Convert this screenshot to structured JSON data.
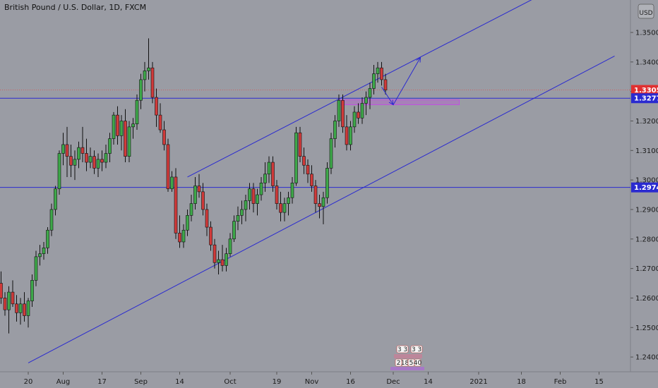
{
  "chart_data": {
    "type": "candlestick",
    "title": "British Pound / U.S. Dollar, 1D, FXCM",
    "currency_button": "USD",
    "ylim": [
      1.235,
      1.361
    ],
    "y_ticks": [
      "1.24000",
      "1.25000",
      "1.26000",
      "1.27000",
      "1.28000",
      "1.29000",
      "1.30000",
      "1.31000",
      "1.32000",
      "1.33000",
      "1.34000",
      "1.35000"
    ],
    "x_ticks": [
      {
        "label": "20",
        "bar": 7
      },
      {
        "label": "Aug",
        "bar": 16
      },
      {
        "label": "17",
        "bar": 26
      },
      {
        "label": "Sep",
        "bar": 36
      },
      {
        "label": "14",
        "bar": 46
      },
      {
        "label": "Oct",
        "bar": 59
      },
      {
        "label": "19",
        "bar": 71
      },
      {
        "label": "Nov",
        "bar": 80
      },
      {
        "label": "16",
        "bar": 90
      },
      {
        "label": "Dec",
        "bar": 101
      },
      {
        "label": "14",
        "bar": 110
      },
      {
        "label": "2021",
        "bar": 123
      },
      {
        "label": "18",
        "bar": 134
      },
      {
        "label": "Feb",
        "bar": 144
      },
      {
        "label": "15",
        "bar": 154
      }
    ],
    "price_tags": [
      {
        "label": "1.33052",
        "value": 1.33052,
        "color": "#e03030"
      },
      {
        "label": "1.32771",
        "value": 1.32771,
        "color": "#2a2ad0"
      },
      {
        "label": "1.29748",
        "value": 1.29748,
        "color": "#2a2ad0"
      }
    ],
    "horizontal_lines": [
      {
        "value": 1.32771,
        "color": "#2a2ad0"
      },
      {
        "value": 1.29748,
        "color": "#2a2ad0"
      },
      {
        "value": 1.33052,
        "color": "#d06060",
        "dashed": true
      }
    ],
    "trend_lines": [
      {
        "from": [
          7,
          1.238
        ],
        "to": [
          158,
          1.342
        ],
        "color": "#2a2ad0"
      },
      {
        "from": [
          48,
          1.301
        ],
        "to": [
          138,
          1.362
        ],
        "color": "#2a2ad0"
      }
    ],
    "zone": {
      "from_bar": 87,
      "to_bar": 118,
      "top": 1.3272,
      "bottom": 1.3255,
      "color": "#c050e0"
    },
    "projection_arrows": [
      {
        "from": [
          98,
          1.3315
        ],
        "to": [
          101,
          1.3255
        ]
      },
      {
        "from": [
          101,
          1.3255
        ],
        "to": [
          108,
          1.3415
        ]
      }
    ],
    "toolbar_buttons": [
      "3",
      "3",
      "3",
      "3",
      "2",
      "18",
      "5",
      "40"
    ],
    "candles": [
      [
        1.265,
        1.269,
        1.258,
        1.26
      ],
      [
        1.26,
        1.262,
        1.254,
        1.256
      ],
      [
        1.256,
        1.264,
        1.248,
        1.262
      ],
      [
        1.262,
        1.266,
        1.257,
        1.258
      ],
      [
        1.258,
        1.261,
        1.252,
        1.255
      ],
      [
        1.255,
        1.26,
        1.251,
        1.258
      ],
      [
        1.258,
        1.262,
        1.252,
        1.254
      ],
      [
        1.254,
        1.26,
        1.25,
        1.259
      ],
      [
        1.259,
        1.268,
        1.257,
        1.266
      ],
      [
        1.266,
        1.276,
        1.264,
        1.274
      ],
      [
        1.274,
        1.278,
        1.271,
        1.275
      ],
      [
        1.275,
        1.279,
        1.273,
        1.277
      ],
      [
        1.277,
        1.284,
        1.275,
        1.283
      ],
      [
        1.283,
        1.292,
        1.281,
        1.29
      ],
      [
        1.29,
        1.298,
        1.288,
        1.297
      ],
      [
        1.297,
        1.31,
        1.295,
        1.309
      ],
      [
        1.309,
        1.316,
        1.305,
        1.312
      ],
      [
        1.312,
        1.318,
        1.301,
        1.308
      ],
      [
        1.308,
        1.312,
        1.301,
        1.305
      ],
      [
        1.305,
        1.31,
        1.3,
        1.307
      ],
      [
        1.307,
        1.313,
        1.304,
        1.311
      ],
      [
        1.311,
        1.318,
        1.306,
        1.309
      ],
      [
        1.309,
        1.314,
        1.303,
        1.306
      ],
      [
        1.306,
        1.311,
        1.304,
        1.308
      ],
      [
        1.308,
        1.31,
        1.302,
        1.304
      ],
      [
        1.304,
        1.309,
        1.301,
        1.307
      ],
      [
        1.307,
        1.31,
        1.303,
        1.306
      ],
      [
        1.306,
        1.312,
        1.304,
        1.309
      ],
      [
        1.309,
        1.316,
        1.306,
        1.314
      ],
      [
        1.314,
        1.323,
        1.312,
        1.322
      ],
      [
        1.322,
        1.325,
        1.312,
        1.315
      ],
      [
        1.315,
        1.322,
        1.31,
        1.32
      ],
      [
        1.32,
        1.324,
        1.306,
        1.308
      ],
      [
        1.308,
        1.32,
        1.306,
        1.318
      ],
      [
        1.318,
        1.321,
        1.314,
        1.319
      ],
      [
        1.319,
        1.329,
        1.317,
        1.327
      ],
      [
        1.327,
        1.336,
        1.324,
        1.334
      ],
      [
        1.334,
        1.34,
        1.33,
        1.337
      ],
      [
        1.337,
        1.348,
        1.334,
        1.338
      ],
      [
        1.338,
        1.34,
        1.326,
        1.328
      ],
      [
        1.328,
        1.331,
        1.318,
        1.322
      ],
      [
        1.322,
        1.326,
        1.316,
        1.317
      ],
      [
        1.317,
        1.32,
        1.31,
        1.312
      ],
      [
        1.312,
        1.314,
        1.296,
        1.297
      ],
      [
        1.297,
        1.303,
        1.296,
        1.301
      ],
      [
        1.301,
        1.304,
        1.28,
        1.282
      ],
      [
        1.282,
        1.288,
        1.277,
        1.279
      ],
      [
        1.279,
        1.285,
        1.277,
        1.283
      ],
      [
        1.283,
        1.29,
        1.281,
        1.288
      ],
      [
        1.288,
        1.295,
        1.286,
        1.292
      ],
      [
        1.292,
        1.301,
        1.29,
        1.298
      ],
      [
        1.298,
        1.302,
        1.294,
        1.296
      ],
      [
        1.296,
        1.299,
        1.288,
        1.29
      ],
      [
        1.29,
        1.292,
        1.281,
        1.284
      ],
      [
        1.284,
        1.286,
        1.276,
        1.278
      ],
      [
        1.278,
        1.28,
        1.27,
        1.272
      ],
      [
        1.272,
        1.276,
        1.268,
        1.273
      ],
      [
        1.273,
        1.278,
        1.269,
        1.271
      ],
      [
        1.271,
        1.277,
        1.269,
        1.275
      ],
      [
        1.275,
        1.282,
        1.274,
        1.28
      ],
      [
        1.28,
        1.288,
        1.279,
        1.286
      ],
      [
        1.286,
        1.291,
        1.283,
        1.288
      ],
      [
        1.288,
        1.293,
        1.285,
        1.29
      ],
      [
        1.29,
        1.295,
        1.286,
        1.293
      ],
      [
        1.293,
        1.299,
        1.29,
        1.297
      ],
      [
        1.297,
        1.299,
        1.289,
        1.292
      ],
      [
        1.292,
        1.297,
        1.288,
        1.295
      ],
      [
        1.295,
        1.301,
        1.293,
        1.299
      ],
      [
        1.299,
        1.306,
        1.296,
        1.302
      ],
      [
        1.302,
        1.308,
        1.299,
        1.306
      ],
      [
        1.306,
        1.308,
        1.296,
        1.298
      ],
      [
        1.298,
        1.3,
        1.29,
        1.292
      ],
      [
        1.292,
        1.296,
        1.286,
        1.289
      ],
      [
        1.289,
        1.294,
        1.286,
        1.292
      ],
      [
        1.292,
        1.296,
        1.288,
        1.294
      ],
      [
        1.294,
        1.301,
        1.292,
        1.299
      ],
      [
        1.299,
        1.318,
        1.298,
        1.316
      ],
      [
        1.316,
        1.318,
        1.306,
        1.308
      ],
      [
        1.308,
        1.311,
        1.302,
        1.305
      ],
      [
        1.305,
        1.307,
        1.299,
        1.302
      ],
      [
        1.302,
        1.305,
        1.296,
        1.298
      ],
      [
        1.298,
        1.3,
        1.289,
        1.292
      ],
      [
        1.292,
        1.295,
        1.287,
        1.291
      ],
      [
        1.291,
        1.296,
        1.285,
        1.294
      ],
      [
        1.294,
        1.306,
        1.292,
        1.304
      ],
      [
        1.304,
        1.316,
        1.302,
        1.314
      ],
      [
        1.314,
        1.322,
        1.311,
        1.32
      ],
      [
        1.32,
        1.329,
        1.318,
        1.327
      ],
      [
        1.327,
        1.329,
        1.316,
        1.318
      ],
      [
        1.318,
        1.322,
        1.31,
        1.312
      ],
      [
        1.312,
        1.32,
        1.31,
        1.318
      ],
      [
        1.318,
        1.325,
        1.316,
        1.323
      ],
      [
        1.323,
        1.326,
        1.319,
        1.321
      ],
      [
        1.321,
        1.328,
        1.319,
        1.326
      ],
      [
        1.326,
        1.33,
        1.322,
        1.328
      ],
      [
        1.328,
        1.333,
        1.324,
        1.331
      ],
      [
        1.331,
        1.339,
        1.329,
        1.336
      ],
      [
        1.336,
        1.34,
        1.333,
        1.338
      ],
      [
        1.338,
        1.34,
        1.332,
        1.334
      ],
      [
        1.334,
        1.336,
        1.329,
        1.3305
      ]
    ]
  }
}
